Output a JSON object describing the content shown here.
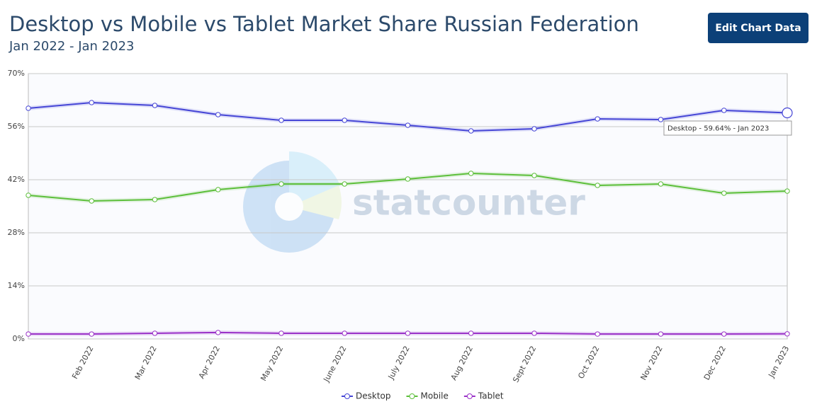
{
  "chart_data": {
    "type": "line",
    "title": "Desktop vs Mobile vs Tablet Market Share Russian Federation",
    "subtitle": "Jan 2022 - Jan 2023",
    "categories": [
      null,
      "Feb 2022",
      "Mar 2022",
      "Apr 2022",
      "May 2022",
      "June 2022",
      "July 2022",
      "Aug 2022",
      "Sept 2022",
      "Oct 2022",
      "Nov 2022",
      "Dec 2022",
      "Jan 2023"
    ],
    "series": [
      {
        "name": "Desktop",
        "color": "#4646d6",
        "values": [
          60.86,
          62.35,
          61.6,
          59.17,
          57.68,
          57.68,
          56.37,
          54.88,
          55.44,
          58.05,
          57.87,
          60.3,
          59.64
        ]
      },
      {
        "name": "Mobile",
        "color": "#5cbf3a",
        "values": [
          37.9,
          36.4,
          36.77,
          39.39,
          40.88,
          40.88,
          42.19,
          43.68,
          43.12,
          40.51,
          40.88,
          38.45,
          39.01
        ]
      },
      {
        "name": "Tablet",
        "color": "#9a32c8",
        "values": [
          1.3,
          1.3,
          1.5,
          1.7,
          1.5,
          1.5,
          1.5,
          1.5,
          1.5,
          1.3,
          1.3,
          1.3,
          1.35
        ]
      }
    ],
    "ylim": [
      0,
      70
    ],
    "yticks": [
      {
        "value": 0,
        "label": "0%"
      },
      {
        "value": 14,
        "label": "14%"
      },
      {
        "value": 28,
        "label": "28%"
      },
      {
        "value": 42,
        "label": "42%"
      },
      {
        "value": 56,
        "label": "56%"
      },
      {
        "value": 70,
        "label": "70%"
      }
    ],
    "grid": true,
    "legend": "bottom",
    "tooltip": "Desktop - 59.64% - Jan 2023",
    "watermark": "statcounter"
  },
  "button": "Edit Chart Data"
}
